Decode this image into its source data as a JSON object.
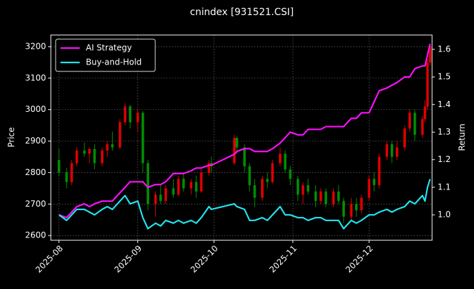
{
  "chart_data": {
    "type": "candlestick",
    "title": "cnindex [931521.CSI]",
    "ylabel": "Price",
    "y2label": "Return",
    "xlim": [
      -3.2,
      146.8
    ],
    "xticks": [
      {
        "value": 0,
        "label": "2025-08"
      },
      {
        "value": 31,
        "label": "2025-09"
      },
      {
        "value": 61,
        "label": "2025-10"
      },
      {
        "value": 92,
        "label": "2025-11"
      },
      {
        "value": 122,
        "label": "2025-12"
      }
    ],
    "ylim": [
      2585,
      3237
    ],
    "yticks": [
      2600,
      2700,
      2800,
      2900,
      3000,
      3100,
      3200
    ],
    "y2lim": [
      0.908,
      1.652
    ],
    "y2ticks": [
      {
        "value": 1,
        "label": "1.0"
      },
      1.1,
      1.2,
      1.3,
      1.4,
      1.5,
      1.6
    ],
    "grid": true,
    "legend": "upper left",
    "up_color": "#e00000",
    "down_color": "#009000",
    "x": [
      0,
      3,
      5,
      7,
      10,
      12,
      14,
      17,
      19,
      21,
      24,
      26,
      28,
      31,
      33,
      35,
      38,
      40,
      42,
      45,
      47,
      49,
      52,
      54,
      56,
      59,
      60,
      69,
      70,
      73,
      75,
      77,
      80,
      82,
      84,
      87,
      89,
      91,
      94,
      96,
      98,
      101,
      103,
      105,
      108,
      110,
      112,
      115,
      117,
      119,
      122,
      124,
      126,
      129,
      131,
      133,
      136,
      138,
      140,
      143,
      144,
      145,
      146
    ],
    "open": [
      2840,
      2800,
      2770,
      2830,
      2870,
      2860,
      2875,
      2830,
      2870,
      2890,
      2880,
      2960,
      3010,
      2960,
      2990,
      2830,
      2700,
      2730,
      2710,
      2750,
      2730,
      2780,
      2750,
      2770,
      2740,
      2800,
      2830,
      2830,
      2910,
      2880,
      2820,
      2760,
      2720,
      2780,
      2770,
      2830,
      2860,
      2810,
      2780,
      2730,
      2760,
      2740,
      2710,
      2740,
      2700,
      2740,
      2710,
      2660,
      2700,
      2680,
      2720,
      2780,
      2760,
      2850,
      2890,
      2850,
      2880,
      2940,
      2990,
      2920,
      2970,
      3010,
      3150
    ],
    "high": [
      2875,
      2815,
      2840,
      2880,
      2895,
      2880,
      2890,
      2880,
      2900,
      2930,
      2970,
      3020,
      3015,
      3000,
      2995,
      2840,
      2740,
      2760,
      2760,
      2780,
      2790,
      2800,
      2780,
      2790,
      2810,
      2840,
      2850,
      2920,
      2915,
      2890,
      2830,
      2780,
      2790,
      2800,
      2840,
      2880,
      2870,
      2820,
      2790,
      2770,
      2780,
      2760,
      2750,
      2750,
      2750,
      2760,
      2720,
      2720,
      2720,
      2730,
      2790,
      2800,
      2860,
      2900,
      2900,
      2900,
      2950,
      3000,
      3000,
      2980,
      3030,
      3160,
      3210
    ],
    "low": [
      2790,
      2750,
      2760,
      2820,
      2850,
      2830,
      2810,
      2820,
      2850,
      2870,
      2875,
      2950,
      2940,
      2930,
      2800,
      2680,
      2660,
      2700,
      2700,
      2720,
      2725,
      2740,
      2730,
      2720,
      2735,
      2790,
      2800,
      2825,
      2860,
      2800,
      2740,
      2690,
      2710,
      2750,
      2765,
      2820,
      2800,
      2760,
      2710,
      2700,
      2730,
      2690,
      2700,
      2690,
      2690,
      2700,
      2640,
      2650,
      2660,
      2670,
      2710,
      2740,
      2750,
      2840,
      2830,
      2840,
      2870,
      2930,
      2900,
      2910,
      2960,
      3000,
      3140
    ],
    "close": [
      2800,
      2770,
      2830,
      2870,
      2860,
      2875,
      2830,
      2870,
      2890,
      2880,
      2960,
      3010,
      2960,
      2990,
      2830,
      2700,
      2730,
      2710,
      2750,
      2730,
      2780,
      2750,
      2770,
      2740,
      2800,
      2830,
      2820,
      2910,
      2880,
      2820,
      2760,
      2720,
      2780,
      2770,
      2830,
      2860,
      2810,
      2780,
      2730,
      2760,
      2740,
      2710,
      2740,
      2700,
      2740,
      2710,
      2660,
      2700,
      2680,
      2720,
      2780,
      2760,
      2850,
      2890,
      2850,
      2880,
      2940,
      2990,
      2920,
      2970,
      3010,
      3150,
      3200
    ],
    "series": [
      {
        "name": "AI Strategy",
        "color": "#ff10ff",
        "axis": "y2",
        "values": [
          1.0,
          0.99,
          1.01,
          1.03,
          1.04,
          1.03,
          1.04,
          1.05,
          1.05,
          1.05,
          1.08,
          1.1,
          1.12,
          1.12,
          1.12,
          1.1,
          1.11,
          1.11,
          1.12,
          1.15,
          1.15,
          1.15,
          1.16,
          1.17,
          1.17,
          1.18,
          1.18,
          1.22,
          1.23,
          1.24,
          1.24,
          1.23,
          1.23,
          1.23,
          1.24,
          1.26,
          1.28,
          1.3,
          1.29,
          1.29,
          1.31,
          1.31,
          1.31,
          1.32,
          1.32,
          1.32,
          1.32,
          1.35,
          1.35,
          1.37,
          1.37,
          1.41,
          1.45,
          1.46,
          1.47,
          1.48,
          1.5,
          1.5,
          1.53,
          1.54,
          1.54,
          1.58,
          1.62
        ]
      },
      {
        "name": "Buy-and-Hold",
        "color": "#22e4f0",
        "axis": "y2",
        "values": [
          1.0,
          0.98,
          1.0,
          1.02,
          1.02,
          1.01,
          1.0,
          1.02,
          1.03,
          1.02,
          1.05,
          1.07,
          1.04,
          1.05,
          0.99,
          0.95,
          0.97,
          0.96,
          0.98,
          0.97,
          0.98,
          0.97,
          0.98,
          0.97,
          0.99,
          1.03,
          1.02,
          1.04,
          1.03,
          1.02,
          0.98,
          0.98,
          0.99,
          0.98,
          1.0,
          1.03,
          1.0,
          1.0,
          0.99,
          0.99,
          0.98,
          0.99,
          0.99,
          0.98,
          0.98,
          0.98,
          0.95,
          0.98,
          0.97,
          0.98,
          1.0,
          1.0,
          1.01,
          1.02,
          1.01,
          1.02,
          1.03,
          1.05,
          1.04,
          1.07,
          1.05,
          1.1,
          1.13
        ]
      }
    ]
  }
}
